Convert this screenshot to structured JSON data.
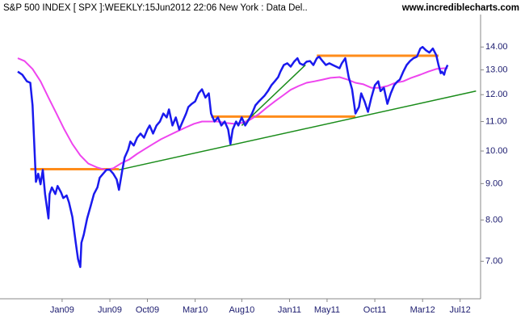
{
  "chart_data": {
    "type": "line",
    "title": "S&P 500 INDEX [ SPX ]:WEEKLY:15Jun2012 22:06 New York : Data Del..",
    "subtitle": "www.incrediblecharts.com",
    "log_scale": true,
    "ylim": [
      6.2,
      16.3
    ],
    "yticks": [
      {
        "value": 7,
        "label": "7.00"
      },
      {
        "value": 8,
        "label": "8.00"
      },
      {
        "value": 9,
        "label": "9.00"
      },
      {
        "value": 10,
        "label": "10.00"
      },
      {
        "value": 11,
        "label": "11.00"
      },
      {
        "value": 12,
        "label": "12.00"
      },
      {
        "value": 13,
        "label": "13.00"
      },
      {
        "value": 14,
        "label": "14.00"
      }
    ],
    "xlim": [
      2008.61,
      2012.68
    ],
    "xticks": [
      {
        "value": 2009.0,
        "label": "Jan09"
      },
      {
        "value": 2009.42,
        "label": "Jun09"
      },
      {
        "value": 2009.75,
        "label": "Oct09"
      },
      {
        "value": 2010.17,
        "label": "Mar10"
      },
      {
        "value": 2010.58,
        "label": "Aug10"
      },
      {
        "value": 2011.0,
        "label": "Jan11"
      },
      {
        "value": 2011.33,
        "label": "May11"
      },
      {
        "value": 2011.75,
        "label": "Oct11"
      },
      {
        "value": 2012.17,
        "label": "Mar12"
      },
      {
        "value": 2012.5,
        "label": "Jul12"
      }
    ],
    "series": [
      {
        "color": "#1a1aee",
        "width": 2.5,
        "x": [
          2008.61,
          2008.65,
          2008.69,
          2008.72,
          2008.74,
          2008.77,
          2008.79,
          2008.81,
          2008.83,
          2008.85,
          2008.88,
          2008.89,
          2008.91,
          2008.94,
          2008.96,
          2008.99,
          2009.01,
          2009.04,
          2009.06,
          2009.09,
          2009.12,
          2009.14,
          2009.16,
          2009.17,
          2009.19,
          2009.22,
          2009.25,
          2009.28,
          2009.31,
          2009.33,
          2009.36,
          2009.39,
          2009.42,
          2009.45,
          2009.48,
          2009.5,
          2009.53,
          2009.55,
          2009.58,
          2009.6,
          2009.63,
          2009.66,
          2009.69,
          2009.72,
          2009.75,
          2009.77,
          2009.8,
          2009.83,
          2009.86,
          2009.89,
          2009.92,
          2009.94,
          2009.97,
          2010.0,
          2010.03,
          2010.06,
          2010.09,
          2010.11,
          2010.14,
          2010.17,
          2010.2,
          2010.23,
          2010.26,
          2010.29,
          2010.31,
          2010.34,
          2010.37,
          2010.4,
          2010.43,
          2010.46,
          2010.48,
          2010.5,
          2010.53,
          2010.55,
          2010.58,
          2010.61,
          2010.64,
          2010.67,
          2010.7,
          2010.73,
          2010.75,
          2010.78,
          2010.81,
          2010.84,
          2010.87,
          2010.9,
          2010.92,
          2010.95,
          2010.98,
          2011.01,
          2011.04,
          2011.07,
          2011.09,
          2011.12,
          2011.15,
          2011.18,
          2011.21,
          2011.24,
          2011.26,
          2011.29,
          2011.32,
          2011.35,
          2011.38,
          2011.41,
          2011.44,
          2011.46,
          2011.49,
          2011.52,
          2011.55,
          2011.58,
          2011.61,
          2011.63,
          2011.66,
          2011.69,
          2011.72,
          2011.75,
          2011.78,
          2011.8,
          2011.83,
          2011.86,
          2011.89,
          2011.92,
          2011.95,
          2011.97,
          2012.0,
          2012.03,
          2012.06,
          2012.09,
          2012.12,
          2012.15,
          2012.17,
          2012.2,
          2012.23,
          2012.26,
          2012.29,
          2012.31,
          2012.33,
          2012.34,
          2012.36,
          2012.37,
          2012.39
        ],
        "values": [
          12.93,
          12.8,
          12.53,
          12.47,
          11.59,
          9.05,
          9.29,
          8.98,
          9.41,
          8.7,
          8.04,
          8.7,
          8.89,
          8.7,
          8.93,
          8.75,
          8.59,
          8.66,
          8.47,
          8.08,
          7.43,
          7.05,
          6.87,
          7.43,
          7.63,
          8.04,
          8.36,
          8.7,
          8.89,
          9.17,
          9.29,
          9.41,
          9.41,
          9.29,
          9.12,
          8.82,
          9.41,
          9.79,
          10.04,
          10.31,
          10.18,
          10.44,
          10.58,
          10.44,
          10.72,
          10.86,
          10.58,
          10.86,
          11.0,
          11.29,
          11.15,
          11.44,
          10.86,
          11.15,
          10.72,
          11.0,
          11.29,
          11.53,
          11.65,
          11.74,
          12.05,
          12.21,
          11.89,
          12.05,
          11.29,
          11.0,
          11.15,
          10.86,
          11.0,
          10.72,
          10.23,
          10.72,
          11.0,
          10.86,
          11.15,
          10.86,
          11.06,
          11.29,
          11.59,
          11.74,
          11.83,
          11.96,
          12.14,
          12.37,
          12.53,
          12.7,
          12.93,
          13.21,
          13.28,
          13.14,
          13.35,
          13.5,
          13.28,
          13.21,
          13.35,
          13.38,
          13.21,
          13.5,
          13.57,
          13.38,
          13.21,
          13.28,
          13.21,
          13.14,
          13.07,
          13.28,
          13.5,
          12.7,
          12.21,
          11.29,
          11.53,
          12.05,
          11.74,
          11.35,
          11.89,
          12.37,
          12.53,
          12.14,
          12.27,
          11.65,
          12.05,
          12.37,
          12.53,
          12.6,
          12.93,
          13.21,
          13.38,
          13.5,
          13.57,
          13.93,
          14.0,
          13.85,
          13.75,
          13.93,
          13.64,
          13.21,
          12.86,
          12.93,
          12.8,
          13.0,
          13.21
        ]
      },
      {
        "color": "#ee44ee",
        "width": 2,
        "x": [
          2008.61,
          2008.67,
          2008.74,
          2008.81,
          2008.88,
          2008.95,
          2009.02,
          2009.09,
          2009.16,
          2009.23,
          2009.31,
          2009.38,
          2009.45,
          2009.52,
          2009.59,
          2009.66,
          2009.73,
          2009.8,
          2009.87,
          2009.94,
          2010.02,
          2010.09,
          2010.16,
          2010.23,
          2010.3,
          2010.37,
          2010.44,
          2010.51,
          2010.58,
          2010.65,
          2010.73,
          2010.8,
          2010.87,
          2010.94,
          2011.01,
          2011.08,
          2011.15,
          2011.22,
          2011.29,
          2011.36,
          2011.44,
          2011.51,
          2011.58,
          2011.65,
          2011.72,
          2011.79,
          2011.86,
          2011.93,
          2012.0,
          2012.07,
          2012.15,
          2012.22,
          2012.29,
          2012.36,
          2012.39
        ],
        "values": [
          13.5,
          13.38,
          13.04,
          12.53,
          11.89,
          11.29,
          10.72,
          10.23,
          9.86,
          9.6,
          9.48,
          9.41,
          9.46,
          9.61,
          9.73,
          9.91,
          10.07,
          10.23,
          10.39,
          10.52,
          10.67,
          10.8,
          10.92,
          11.0,
          11.0,
          11.0,
          10.95,
          10.92,
          10.95,
          11.06,
          11.27,
          11.51,
          11.74,
          11.96,
          12.19,
          12.34,
          12.47,
          12.53,
          12.6,
          12.67,
          12.7,
          12.6,
          12.47,
          12.41,
          12.27,
          12.27,
          12.34,
          12.47,
          12.53,
          12.67,
          12.8,
          12.93,
          13.04,
          13.07,
          13.07
        ]
      }
    ],
    "lines": [
      {
        "color": "#ff8c1a",
        "x": [
          2008.72,
          2009.5
        ],
        "y": [
          9.43,
          9.43
        ]
      },
      {
        "color": "#ff8c1a",
        "x": [
          2010.31,
          2011.58
        ],
        "y": [
          11.18,
          11.18
        ]
      },
      {
        "color": "#ff8c1a",
        "x": [
          2011.24,
          2012.31
        ],
        "y": [
          13.61,
          13.61
        ]
      },
      {
        "color": "#1a8c1a",
        "x": [
          2009.5,
          2012.64
        ],
        "y": [
          9.41,
          12.14
        ]
      },
      {
        "color": "#1a8c1a",
        "x": [
          2010.58,
          2011.14
        ],
        "y": [
          10.86,
          13.21
        ]
      }
    ]
  }
}
